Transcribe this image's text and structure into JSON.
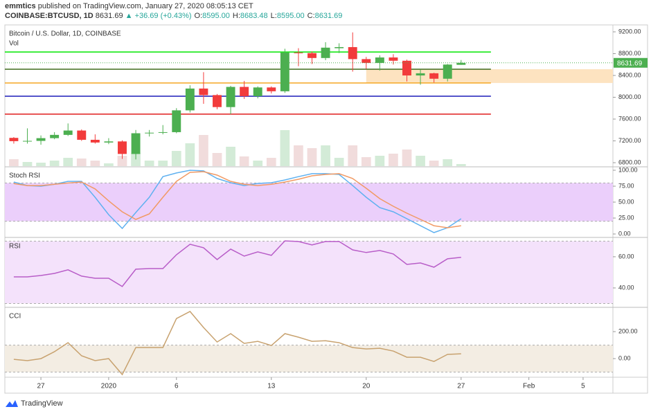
{
  "header": {
    "author": "emmtics",
    "published": "published on TradingView.com, January 27, 2020 08:05:13 CET",
    "symbol": "COINBASE:BTCUSD, 1D",
    "last": "8631.69",
    "change": "▲ +36.69 (+0.43%)",
    "ohlc": [
      {
        "key": "O:",
        "value": "8595.00"
      },
      {
        "key": "H:",
        "value": "8683.48"
      },
      {
        "key": "L:",
        "value": "8595.00"
      },
      {
        "key": "C:",
        "value": "8631.69"
      }
    ]
  },
  "footer": {
    "brand": "TradingView"
  },
  "chart_data": [
    {
      "type": "candlestick",
      "title": "Bitcoin / U.S. Dollar, 1D, COINBASE",
      "volume_label": "Vol",
      "x": [
        0,
        1,
        2,
        3,
        4,
        5,
        6,
        7,
        8,
        9,
        10,
        11,
        12,
        13,
        14,
        15,
        16,
        17,
        18,
        19,
        20,
        21,
        22,
        23,
        24,
        25,
        26,
        27,
        28,
        29,
        30,
        31,
        32,
        33
      ],
      "open": [
        7255,
        7195,
        7200,
        7250,
        7310,
        7390,
        7220,
        7170,
        7190,
        6960,
        7340,
        7350,
        7360,
        7760,
        8160,
        8040,
        7820,
        8190,
        8020,
        8180,
        8110,
        8820,
        8810,
        8720,
        8900,
        8920,
        8700,
        8630,
        8730,
        8670,
        8400,
        8440,
        8340,
        8595
      ],
      "high": [
        7270,
        7430,
        7300,
        7360,
        7520,
        7410,
        7320,
        7250,
        7210,
        7400,
        7400,
        7490,
        7800,
        8220,
        8460,
        8060,
        8210,
        8300,
        8200,
        8200,
        8890,
        8900,
        8840,
        9010,
        8990,
        9190,
        8740,
        8770,
        8790,
        8690,
        8510,
        8450,
        8610,
        8683.48
      ],
      "low": [
        7150,
        7150,
        7130,
        7230,
        7290,
        7200,
        7150,
        7140,
        6870,
        6860,
        7280,
        7320,
        7340,
        7720,
        7880,
        7780,
        7690,
        7970,
        7980,
        8070,
        8080,
        8570,
        8610,
        8680,
        8810,
        8470,
        8520,
        8490,
        8600,
        8290,
        8230,
        8270,
        8290,
        8595
      ],
      "close": [
        7195,
        7200,
        7250,
        7310,
        7390,
        7220,
        7170,
        7190,
        6960,
        7340,
        7350,
        7360,
        7760,
        8160,
        8040,
        7820,
        8190,
        8020,
        8180,
        8110,
        8820,
        8810,
        8720,
        8910,
        8920,
        8700,
        8630,
        8730,
        8670,
        8400,
        8440,
        8340,
        8600,
        8631.69
      ],
      "volume": [
        10,
        6,
        5,
        8,
        12,
        11,
        8,
        4,
        15,
        19,
        8,
        8,
        22,
        33,
        45,
        19,
        28,
        14,
        8,
        12,
        52,
        30,
        26,
        30,
        12,
        30,
        13,
        15,
        18,
        24,
        15,
        8,
        10,
        3
      ],
      "vlim": [
        0,
        204
      ],
      "up_color": "#4caf50",
      "down_color": "#f23b3b",
      "volume_up_color": "#d3ebd7",
      "volume_down_color": "#f1dcdc",
      "levels": [
        {
          "value": 8830,
          "color": "#00e600"
        },
        {
          "value": 8515,
          "color": "#3f6b1c"
        },
        {
          "value": 8262,
          "color": "#f5a623"
        },
        {
          "value": 8020,
          "color": "#1a1ab8"
        },
        {
          "value": 7690,
          "color": "#e01b1b"
        }
      ],
      "levels_x_end": 35.2,
      "zone": {
        "low": 8262,
        "high": 8515,
        "x_start": 26,
        "color": "#fde3c0"
      },
      "ylim": [
        6737,
        9327
      ],
      "yticks": [
        {
          "value": 9200,
          "label": "9200.00"
        },
        {
          "value": 8800,
          "label": "8800.00"
        },
        {
          "value": 8400,
          "label": "8400.00"
        },
        {
          "value": 8000,
          "label": "8000.00"
        },
        {
          "value": 7600,
          "label": "7600.00"
        },
        {
          "value": 7200,
          "label": "7200.00"
        },
        {
          "value": 6800,
          "label": "6800.00"
        }
      ],
      "xlim": [
        -0.66,
        44.2
      ],
      "xticks": [
        {
          "value": 2,
          "label": "27"
        },
        {
          "value": 7,
          "label": "2020"
        },
        {
          "value": 12,
          "label": "6"
        },
        {
          "value": 19,
          "label": "13"
        },
        {
          "value": 26,
          "label": "20"
        },
        {
          "value": 33,
          "label": "27"
        },
        {
          "value": 38,
          "label": "Feb"
        },
        {
          "value": 42,
          "label": "5"
        }
      ]
    },
    {
      "type": "line",
      "title": "Stoch RSI",
      "x": [
        0,
        1,
        2,
        3,
        4,
        5,
        6,
        7,
        8,
        9,
        10,
        11,
        12,
        13,
        14,
        15,
        16,
        17,
        18,
        19,
        20,
        21,
        22,
        23,
        24,
        25,
        26,
        27,
        28,
        29,
        30,
        31,
        32,
        33
      ],
      "series": [
        {
          "color": "#5fb1f0",
          "values": [
            81.5,
            76,
            75,
            78,
            82.6,
            82.6,
            57.6,
            30.4,
            8.7,
            33.7,
            57.6,
            90,
            95.7,
            100,
            99,
            87,
            80.4,
            76,
            79.3,
            80.4,
            84.8,
            90,
            94.6,
            94.6,
            93.5,
            76,
            57.6,
            41.3,
            34.8,
            23.9,
            13,
            2.2,
            9.8,
            23.9
          ]
        },
        {
          "color": "#f19a64",
          "values": [
            79,
            76,
            76,
            78,
            80,
            81.5,
            70.7,
            52,
            34.8,
            22.8,
            31.5,
            57.6,
            82.6,
            96.7,
            97.8,
            92.4,
            82.6,
            78,
            76,
            78,
            81.5,
            85.9,
            91.3,
            93.5,
            94.6,
            87,
            71.7,
            55.4,
            43.5,
            32.6,
            22.8,
            13,
            9.8,
            13
          ]
        }
      ],
      "band": {
        "low": 20,
        "high": 80,
        "color": "#ebcffb"
      },
      "ylim": [
        -4.3,
        105.4
      ],
      "yticks": [
        {
          "value": 100,
          "label": "100.00"
        },
        {
          "value": 75,
          "label": "75.00"
        },
        {
          "value": 50,
          "label": "50.00"
        },
        {
          "value": 25,
          "label": "25.00"
        },
        {
          "value": 0,
          "label": "0.00"
        }
      ]
    },
    {
      "type": "line",
      "title": "RSI",
      "x": [
        0,
        1,
        2,
        3,
        4,
        5,
        6,
        7,
        8,
        9,
        10,
        11,
        12,
        13,
        14,
        15,
        16,
        17,
        18,
        19,
        20,
        21,
        22,
        23,
        24,
        25,
        26,
        27,
        28,
        29,
        30,
        31,
        32,
        33
      ],
      "series": [
        {
          "color": "#b85dc8",
          "values": [
            47.1,
            47.1,
            48,
            49.3,
            51.6,
            47.6,
            46.2,
            46.2,
            40.9,
            52,
            52.4,
            52.4,
            61.3,
            68,
            65.8,
            58.2,
            64.9,
            60.4,
            63.1,
            60.9,
            70.2,
            69.8,
            67.6,
            69.8,
            69.8,
            64.4,
            62.7,
            64,
            61.8,
            55.1,
            56,
            53.3,
            58.7,
            59.6
          ]
        }
      ],
      "band": {
        "low": 30,
        "high": 70,
        "color": "#f4e2fb"
      },
      "ylim": [
        28,
        72.4
      ],
      "yticks": [
        {
          "value": 60,
          "label": "60.00"
        },
        {
          "value": 40,
          "label": "40.00"
        }
      ]
    },
    {
      "type": "line",
      "title": "CCI",
      "x": [
        0,
        1,
        2,
        3,
        4,
        5,
        6,
        7,
        8,
        9,
        10,
        11,
        12,
        13,
        14,
        15,
        16,
        17,
        18,
        19,
        20,
        21,
        22,
        23,
        24,
        25,
        26,
        27,
        28,
        29,
        30,
        31,
        32,
        33
      ],
      "series": [
        {
          "color": "#c8a26f",
          "values": [
            -5,
            -15,
            0,
            51,
            118,
            21,
            -15,
            0,
            -118,
            82,
            82,
            82,
            297,
            349,
            231,
            123,
            185,
            113,
            128,
            97,
            185,
            159,
            128,
            133,
            118,
            82,
            72,
            77,
            56,
            10,
            10,
            -21,
            31,
            36
          ]
        }
      ],
      "band": {
        "low": -100,
        "high": 100,
        "color": "#f3ede3"
      },
      "ylim": [
        -138,
        380
      ],
      "yticks": [
        {
          "value": 200,
          "label": "200.00"
        },
        {
          "value": 0,
          "label": "0.00"
        }
      ]
    }
  ]
}
